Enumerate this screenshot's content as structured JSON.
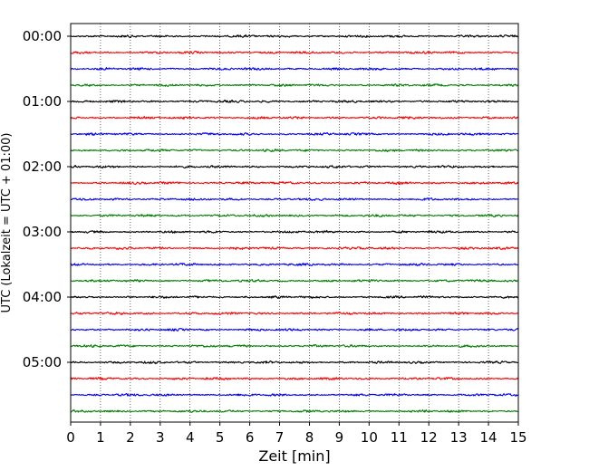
{
  "chart_data": {
    "type": "line",
    "title": "",
    "xlabel": "Zeit  [min]",
    "ylabel": "UTC (Lokalzeit = UTC + 01:00)",
    "xlim": [
      0,
      15
    ],
    "x_ticks": [
      "0",
      "1",
      "2",
      "3",
      "4",
      "5",
      "6",
      "7",
      "8",
      "9",
      "10",
      "11",
      "12",
      "13",
      "14",
      "15"
    ],
    "y_ticks": [
      "00:00",
      "01:00",
      "02:00",
      "03:00",
      "04:00",
      "05:00"
    ],
    "trace_interval_min": 15,
    "trace_count": 24,
    "trace_colors": [
      "#000000",
      "#ff0000",
      "#0000ff",
      "#008000"
    ],
    "vertical_grid": "dotted",
    "legend": "none"
  }
}
